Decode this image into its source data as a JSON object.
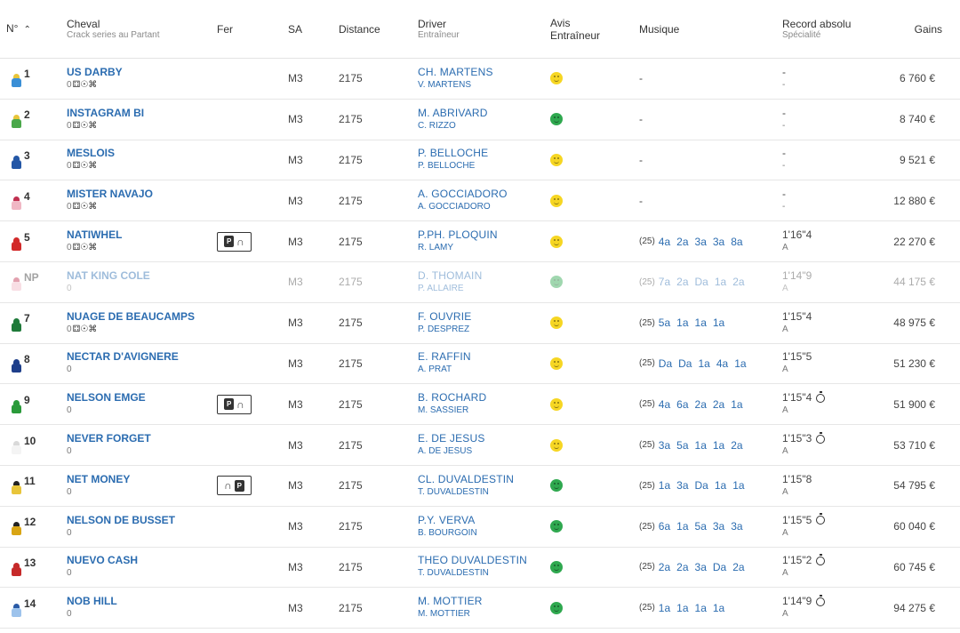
{
  "header": {
    "num_label": "N°",
    "horse_label": "Cheval",
    "horse_sub": "Crack series au Partant",
    "fer_label": "Fer",
    "sa_label": "SA",
    "distance_label": "Distance",
    "driver_label": "Driver",
    "driver_sub": "Entraîneur",
    "avis_label_1": "Avis",
    "avis_label_2": "Entraîneur",
    "musique_label": "Musique",
    "record_label": "Record absolu",
    "record_sub": "Spécialité",
    "gains_label": "Gains"
  },
  "rows": [
    {
      "num": "1",
      "name": "US DARBY",
      "sub_zero": "0",
      "crack": true,
      "fer": "",
      "sa": "M3",
      "distance": "2175",
      "driver": "CH. MARTENS",
      "trainer": "V. MARTENS",
      "avis": "yellow",
      "musique_year": "",
      "musique": [],
      "musique_dash": "-",
      "record": "-",
      "spec": "-",
      "stopwatch": false,
      "gains": "6 760 €",
      "colors": [
        "#e8c53a",
        "#3a8fd6"
      ],
      "np": false
    },
    {
      "num": "2",
      "name": "INSTAGRAM BI",
      "sub_zero": "0",
      "crack": true,
      "fer": "",
      "sa": "M3",
      "distance": "2175",
      "driver": "M. ABRIVARD",
      "trainer": "C. RIZZO",
      "avis": "green",
      "musique_year": "",
      "musique": [],
      "musique_dash": "-",
      "record": "-",
      "spec": "-",
      "stopwatch": false,
      "gains": "8 740 €",
      "colors": [
        "#e8c53a",
        "#4aa84a"
      ],
      "np": false
    },
    {
      "num": "3",
      "name": "MESLOIS",
      "sub_zero": "0",
      "crack": true,
      "fer": "",
      "sa": "M3",
      "distance": "2175",
      "driver": "P. BELLOCHE",
      "trainer": "P. BELLOCHE",
      "avis": "yellow",
      "musique_year": "",
      "musique": [],
      "musique_dash": "-",
      "record": "-",
      "spec": "-",
      "stopwatch": false,
      "gains": "9 521 €",
      "colors": [
        "#2457a6",
        "#2457a6"
      ],
      "np": false
    },
    {
      "num": "4",
      "name": "MISTER NAVAJO",
      "sub_zero": "0",
      "crack": true,
      "fer": "",
      "sa": "M3",
      "distance": "2175",
      "driver": "A. GOCCIADORO",
      "trainer": "A. GOCCIADORO",
      "avis": "yellow",
      "musique_year": "",
      "musique": [],
      "musique_dash": "-",
      "record": "-",
      "spec": "-",
      "stopwatch": false,
      "gains": "12 880 €",
      "colors": [
        "#c03050",
        "#f0b7c4"
      ],
      "np": false
    },
    {
      "num": "5",
      "name": "NATIWHEL",
      "sub_zero": "0",
      "crack": true,
      "fer": "P∩",
      "sa": "M3",
      "distance": "2175",
      "driver": "P.PH. PLOQUIN",
      "trainer": "R. LAMY",
      "avis": "yellow",
      "musique_year": "(25)",
      "musique": [
        "4a",
        "2a",
        "3a",
        "3a",
        "8a"
      ],
      "musique_dash": "",
      "record": "1'16\"4",
      "spec": "A",
      "stopwatch": false,
      "gains": "22 270 €",
      "colors": [
        "#d22a2a",
        "#d22a2a"
      ],
      "np": false
    },
    {
      "num": "NP",
      "name": "NAT KING COLE",
      "sub_zero": "0",
      "crack": false,
      "fer": "",
      "sa": "M3",
      "distance": "2175",
      "driver": "D. THOMAIN",
      "trainer": "P. ALLAIRE",
      "avis": "green",
      "musique_year": "(25)",
      "musique": [
        "7a",
        "2a",
        "Da",
        "1a",
        "2a"
      ],
      "musique_dash": "",
      "record": "1'14\"9",
      "spec": "A",
      "stopwatch": false,
      "gains": "44 175 €",
      "colors": [
        "#c03050",
        "#f0b7c4"
      ],
      "np": true
    },
    {
      "num": "7",
      "name": "NUAGE DE BEAUCAMPS",
      "sub_zero": "0",
      "crack": true,
      "fer": "",
      "sa": "M3",
      "distance": "2175",
      "driver": "F. OUVRIE",
      "trainer": "P. DESPREZ",
      "avis": "yellow",
      "musique_year": "(25)",
      "musique": [
        "5a",
        "1a",
        "1a",
        "1a"
      ],
      "musique_dash": "",
      "record": "1'15\"4",
      "spec": "A",
      "stopwatch": false,
      "gains": "48 975 €",
      "colors": [
        "#1f7a3a",
        "#1f7a3a"
      ],
      "np": false
    },
    {
      "num": "8",
      "name": "NECTAR D'AVIGNERE",
      "sub_zero": "0",
      "crack": false,
      "fer": "",
      "sa": "M3",
      "distance": "2175",
      "driver": "E. RAFFIN",
      "trainer": "A. PRAT",
      "avis": "yellow",
      "musique_year": "(25)",
      "musique": [
        "Da",
        "Da",
        "1a",
        "4a",
        "1a"
      ],
      "musique_dash": "",
      "record": "1'15\"5",
      "spec": "A",
      "stopwatch": false,
      "gains": "51 230 €",
      "colors": [
        "#1e3f8a",
        "#1e3f8a"
      ],
      "np": false
    },
    {
      "num": "9",
      "name": "NELSON EMGE",
      "sub_zero": "0",
      "crack": false,
      "fer": "P∩",
      "sa": "M3",
      "distance": "2175",
      "driver": "B. ROCHARD",
      "trainer": "M. SASSIER",
      "avis": "yellow",
      "musique_year": "(25)",
      "musique": [
        "4a",
        "6a",
        "2a",
        "2a",
        "1a"
      ],
      "musique_dash": "",
      "record": "1'15\"4",
      "spec": "A",
      "stopwatch": true,
      "gains": "51 900 €",
      "colors": [
        "#2a9a3a",
        "#2a9a3a"
      ],
      "np": false
    },
    {
      "num": "10",
      "name": "NEVER FORGET",
      "sub_zero": "0",
      "crack": false,
      "fer": "",
      "sa": "M3",
      "distance": "2175",
      "driver": "E. DE JESUS",
      "trainer": "A. DE JESUS",
      "avis": "yellow",
      "musique_year": "(25)",
      "musique": [
        "3a",
        "5a",
        "1a",
        "1a",
        "2a"
      ],
      "musique_dash": "",
      "record": "1'15\"3",
      "spec": "A",
      "stopwatch": true,
      "gains": "53 710 €",
      "colors": [
        "#d9d9d9",
        "#f4f4f4"
      ],
      "np": false
    },
    {
      "num": "11",
      "name": "NET MONEY",
      "sub_zero": "0",
      "crack": false,
      "fer": "∩P",
      "sa": "M3",
      "distance": "2175",
      "driver": "CL. DUVALDESTIN",
      "trainer": "T. DUVALDESTIN",
      "avis": "green",
      "musique_year": "(25)",
      "musique": [
        "1a",
        "3a",
        "Da",
        "1a",
        "1a"
      ],
      "musique_dash": "",
      "record": "1'15\"8",
      "spec": "A",
      "stopwatch": false,
      "gains": "54 795 €",
      "colors": [
        "#222222",
        "#e8c53a"
      ],
      "np": false
    },
    {
      "num": "12",
      "name": "NELSON DE BUSSET",
      "sub_zero": "0",
      "crack": false,
      "fer": "",
      "sa": "M3",
      "distance": "2175",
      "driver": "P.Y. VERVA",
      "trainer": "B. BOURGOIN",
      "avis": "green",
      "musique_year": "(25)",
      "musique": [
        "6a",
        "1a",
        "5a",
        "3a",
        "3a"
      ],
      "musique_dash": "",
      "record": "1'15\"5",
      "spec": "A",
      "stopwatch": true,
      "gains": "60 040 €",
      "colors": [
        "#222222",
        "#d9a514"
      ],
      "np": false
    },
    {
      "num": "13",
      "name": "NUEVO CASH",
      "sub_zero": "0",
      "crack": false,
      "fer": "",
      "sa": "M3",
      "distance": "2175",
      "driver": "THEO DUVALDESTIN",
      "trainer": "T. DUVALDESTIN",
      "avis": "green",
      "musique_year": "(25)",
      "musique": [
        "2a",
        "2a",
        "3a",
        "Da",
        "2a"
      ],
      "musique_dash": "",
      "record": "1'15\"2",
      "spec": "A",
      "stopwatch": true,
      "gains": "60 745 €",
      "colors": [
        "#c62a2a",
        "#c62a2a"
      ],
      "np": false
    },
    {
      "num": "14",
      "name": "NOB HILL",
      "sub_zero": "0",
      "crack": false,
      "fer": "",
      "sa": "M3",
      "distance": "2175",
      "driver": "M. MOTTIER",
      "trainer": "M. MOTTIER",
      "avis": "green",
      "musique_year": "(25)",
      "musique": [
        "1a",
        "1a",
        "1a",
        "1a"
      ],
      "musique_dash": "",
      "record": "1'14\"9",
      "spec": "A",
      "stopwatch": true,
      "gains": "94 275 €",
      "colors": [
        "#2a5aa6",
        "#9dc3ec"
      ],
      "np": false
    }
  ]
}
